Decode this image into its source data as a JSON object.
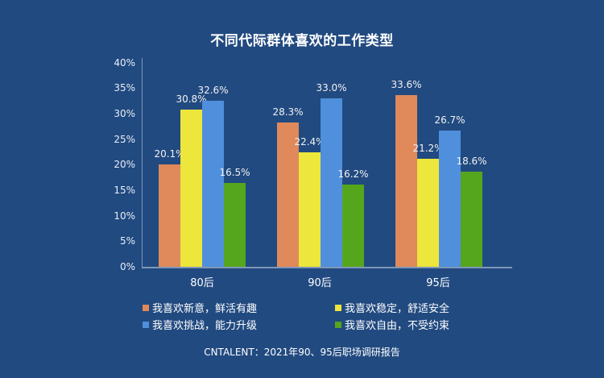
{
  "chart_data": {
    "type": "bar",
    "title": "不同代际群体喜欢的工作类型",
    "categories": [
      "80后",
      "90后",
      "95后"
    ],
    "series": [
      {
        "name": "我喜欢新意，鲜活有趣",
        "color": "#e0895a",
        "values": [
          20.1,
          28.3,
          33.6
        ],
        "labels": [
          "20.1%",
          "28.3%",
          "33.6%"
        ]
      },
      {
        "name": "我喜欢稳定，舒适安全",
        "color": "#ede63c",
        "values": [
          30.8,
          22.4,
          21.2
        ],
        "labels": [
          "30.8%",
          "22.4%",
          "21.2%"
        ]
      },
      {
        "name": "我喜欢挑战，能力升级",
        "color": "#4f8fdb",
        "values": [
          32.6,
          33.0,
          26.7
        ],
        "labels": [
          "32.6%",
          "33.0%",
          "26.7%"
        ]
      },
      {
        "name": "我喜欢自由，不受约束",
        "color": "#55a61c",
        "values": [
          16.5,
          16.2,
          18.6
        ],
        "labels": [
          "16.5%",
          "16.2%",
          "18.6%"
        ]
      }
    ],
    "yticks": [
      "0%",
      "5%",
      "10%",
      "15%",
      "20%",
      "25%",
      "30%",
      "35%",
      "40%"
    ],
    "ylim": [
      0,
      40
    ],
    "xlabel": "",
    "ylabel": "",
    "grid": false,
    "legend_position": "bottom",
    "source": "CNTALENT：2021年90、95后职场调研报告"
  }
}
